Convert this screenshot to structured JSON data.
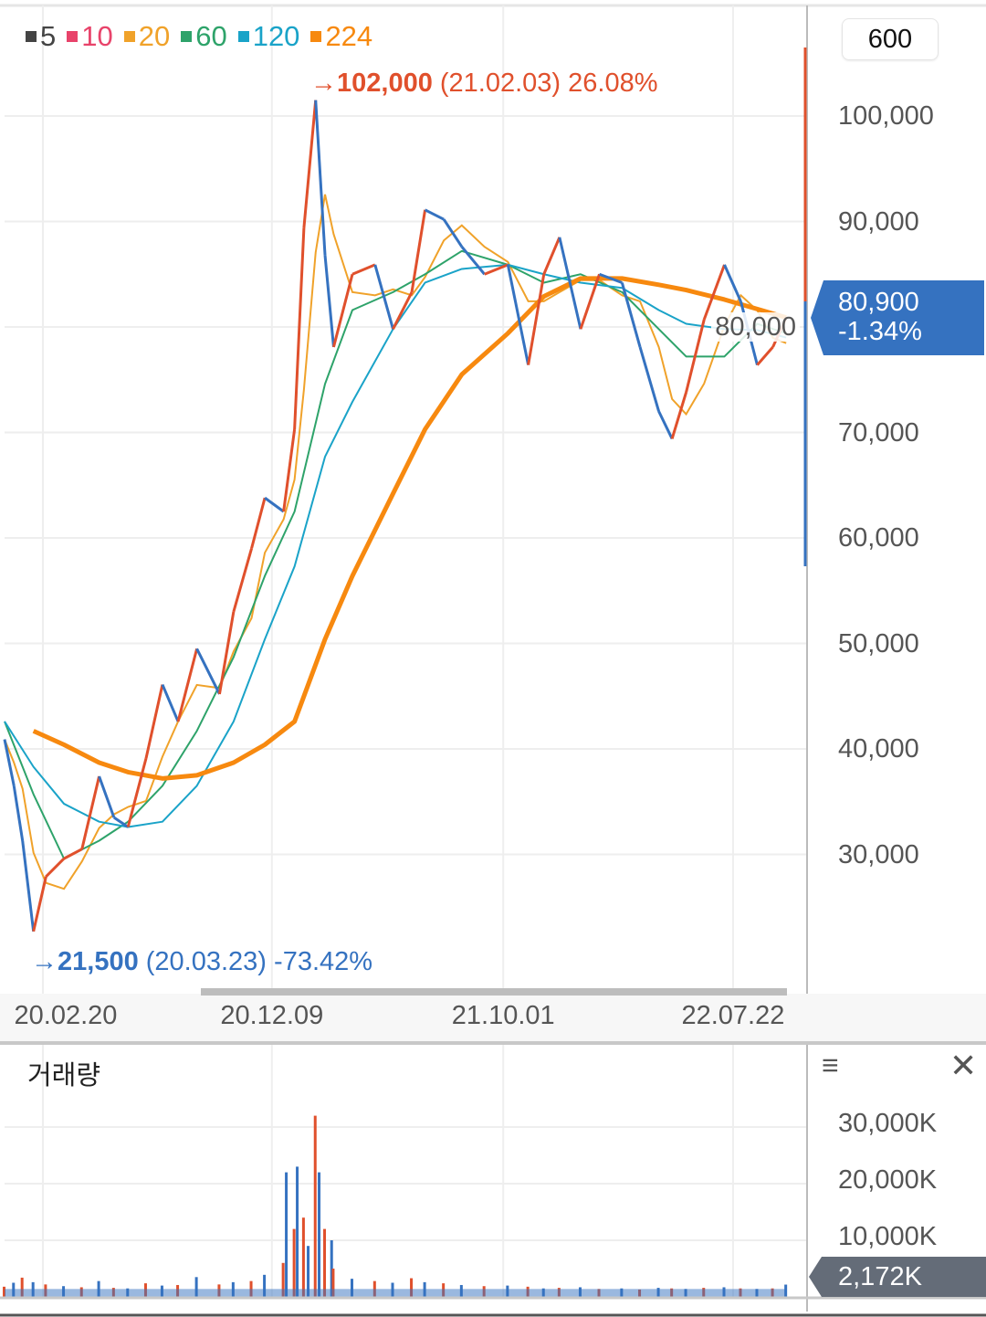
{
  "legend": [
    {
      "label": "5",
      "color": "#444444"
    },
    {
      "label": "10",
      "color": "#e8436a"
    },
    {
      "label": "20",
      "color": "#f0a22a"
    },
    {
      "label": "60",
      "color": "#2ea36a"
    },
    {
      "label": "120",
      "color": "#1aa3c8"
    },
    {
      "label": "224",
      "color": "#f7890f"
    }
  ],
  "period_box": "600",
  "high_annotation": {
    "arrow": "→",
    "price": "102,000",
    "date": "(21.02.03)",
    "pct": "26.08%",
    "color": "#e0502c"
  },
  "low_annotation": {
    "arrow": "→",
    "price": "21,500",
    "date": "(20.03.23)",
    "pct": "-73.42%",
    "color": "#3572c0"
  },
  "current_price": {
    "price": "80,900",
    "change": "-1.34%",
    "color": "#3572c0"
  },
  "volume_panel": {
    "title": "거래량",
    "current": "2,172K",
    "menu_icon": "hamburger-icon",
    "close_icon": "close-icon"
  },
  "chart_data": {
    "type": "line",
    "subtype": "stock-candlestick-with-moving-averages",
    "x_range": [
      "2020-01-02",
      "2022-09-29"
    ],
    "x_ticks": [
      {
        "date": "2020-02-20",
        "label": "20.02.20"
      },
      {
        "date": "2020-12-09",
        "label": "20.12.09"
      },
      {
        "date": "2021-10-01",
        "label": "21.10.01"
      },
      {
        "date": "2022-07-22",
        "label": "22.07.22"
      }
    ],
    "y_range": [
      20000,
      108000
    ],
    "y_ticks": [
      {
        "v": 100000,
        "label": "100,000"
      },
      {
        "v": 90000,
        "label": "90,000"
      },
      {
        "v": 80000,
        "label": "80,000"
      },
      {
        "v": 70000,
        "label": "70,000"
      },
      {
        "v": 60000,
        "label": "60,000"
      },
      {
        "v": 50000,
        "label": "50,000"
      },
      {
        "v": 40000,
        "label": "40,000"
      },
      {
        "v": 30000,
        "label": "30,000"
      }
    ],
    "grid": true,
    "up_color": "#e0502c",
    "down_color": "#3572c0",
    "close": {
      "dates": [
        "2020-01-02",
        "2020-01-14",
        "2020-01-25",
        "2020-02-08",
        "2020-02-24",
        "2020-03-18",
        "2020-04-10",
        "2020-05-02",
        "2020-05-21",
        "2020-06-08",
        "2020-07-01",
        "2020-07-22",
        "2020-08-11",
        "2020-09-04",
        "2020-10-03",
        "2020-10-21",
        "2020-11-13",
        "2020-11-30",
        "2020-12-24",
        "2021-01-07",
        "2021-01-19",
        "2021-02-03",
        "2021-02-15",
        "2021-02-26",
        "2021-03-22",
        "2021-04-20",
        "2021-05-13",
        "2021-06-06",
        "2021-06-23",
        "2021-07-17",
        "2021-08-09",
        "2021-09-07",
        "2021-10-07",
        "2021-11-02",
        "2021-11-22",
        "2021-12-12",
        "2022-01-08",
        "2022-02-01",
        "2022-03-02",
        "2022-03-25",
        "2022-04-18",
        "2022-05-05",
        "2022-05-23",
        "2022-06-15",
        "2022-07-11",
        "2022-08-01",
        "2022-08-22",
        "2022-09-11",
        "2022-09-28"
      ],
      "values": [
        40900,
        36500,
        31300,
        22700,
        27900,
        29600,
        30500,
        37400,
        33500,
        32600,
        39100,
        46100,
        42600,
        49500,
        45200,
        53000,
        59000,
        63800,
        62500,
        70300,
        89400,
        101500,
        86800,
        78100,
        85000,
        85900,
        79800,
        83300,
        91100,
        90200,
        87600,
        85000,
        85900,
        76400,
        85000,
        88500,
        79800,
        85000,
        84200,
        78100,
        72000,
        69400,
        73800,
        80700,
        85900,
        82400,
        76400,
        78100,
        80900
      ]
    },
    "moving_averages": {
      "dates": [
        "2020-01-02",
        "2020-02-08",
        "2020-03-18",
        "2020-05-02",
        "2020-06-08",
        "2020-07-22",
        "2020-09-04",
        "2020-10-21",
        "2020-11-30",
        "2021-01-07",
        "2021-02-15",
        "2021-03-22",
        "2021-05-13",
        "2021-06-23",
        "2021-08-09",
        "2021-10-07",
        "2021-11-22",
        "2022-01-08",
        "2022-03-02",
        "2022-04-18",
        "2022-05-23",
        "2022-07-11",
        "2022-08-22",
        "2022-09-28"
      ],
      "series": [
        {
          "name": "60",
          "color": "#2ea36a",
          "values": [
            42600,
            35700,
            29600,
            31300,
            33100,
            36500,
            41700,
            48700,
            56400,
            62500,
            74600,
            81600,
            83300,
            85000,
            87200,
            85900,
            84200,
            85000,
            83300,
            79800,
            77200,
            77200,
            80300,
            79400
          ]
        },
        {
          "name": "120",
          "color": "#1aa3c8",
          "values": [
            42600,
            38300,
            34800,
            33100,
            32600,
            33100,
            36500,
            42600,
            50400,
            57300,
            67700,
            72900,
            79800,
            84200,
            85500,
            85900,
            85000,
            84200,
            83700,
            81600,
            80300,
            79800,
            79700,
            79000
          ]
        },
        {
          "name": "224",
          "color": "#f7890f",
          "values": [
            null,
            41700,
            40400,
            38700,
            37800,
            37200,
            37500,
            38700,
            40400,
            42600,
            50400,
            56400,
            64200,
            70300,
            75500,
            79400,
            82900,
            84600,
            84600,
            84000,
            83500,
            82600,
            81700,
            80900
          ]
        }
      ]
    },
    "volume": {
      "y_ticks": [
        {
          "v": 30000,
          "label": "30,000K"
        },
        {
          "v": 20000,
          "label": "20,000K"
        },
        {
          "v": 10000,
          "label": "10,000K"
        }
      ],
      "y_range": [
        0,
        34000
      ],
      "dates": [
        "2020-01-02",
        "2020-01-14",
        "2020-01-25",
        "2020-02-08",
        "2020-02-24",
        "2020-03-18",
        "2020-04-10",
        "2020-05-02",
        "2020-05-21",
        "2020-06-08",
        "2020-07-01",
        "2020-07-22",
        "2020-08-11",
        "2020-09-04",
        "2020-10-03",
        "2020-10-21",
        "2020-11-13",
        "2020-11-30",
        "2020-12-24",
        "2020-12-28",
        "2021-01-07",
        "2021-01-11",
        "2021-01-19",
        "2021-01-25",
        "2021-02-03",
        "2021-02-08",
        "2021-02-15",
        "2021-02-24",
        "2021-02-26",
        "2021-03-22",
        "2021-04-20",
        "2021-05-13",
        "2021-06-06",
        "2021-06-23",
        "2021-07-17",
        "2021-08-09",
        "2021-09-07",
        "2021-10-07",
        "2021-11-02",
        "2021-11-22",
        "2021-12-12",
        "2022-01-08",
        "2022-02-01",
        "2022-03-02",
        "2022-03-25",
        "2022-04-18",
        "2022-05-05",
        "2022-05-23",
        "2022-06-15",
        "2022-07-11",
        "2022-08-01",
        "2022-08-22",
        "2022-09-11",
        "2022-09-28"
      ],
      "values": [
        1800,
        2500,
        3400,
        2600,
        2200,
        1900,
        1700,
        2800,
        1600,
        1500,
        2400,
        2000,
        2100,
        3500,
        2200,
        2600,
        2800,
        3900,
        6000,
        22000,
        12000,
        23000,
        14000,
        9000,
        32000,
        22000,
        12000,
        10000,
        5000,
        3200,
        2800,
        2500,
        3300,
        2600,
        2400,
        2100,
        1900,
        2000,
        1800,
        1500,
        1600,
        1700,
        1400,
        1500,
        1300,
        1600,
        1500,
        1400,
        1600,
        1700,
        1500,
        1400,
        1500,
        2172
      ]
    }
  }
}
